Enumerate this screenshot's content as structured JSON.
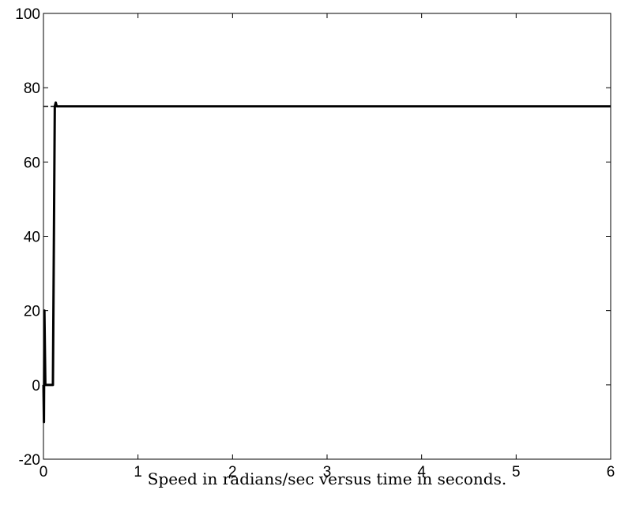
{
  "chart_data": {
    "type": "line",
    "title": "",
    "xlabel": "Speed in radians/sec versus time in seconds.",
    "ylabel": "",
    "xlim": [
      0,
      6
    ],
    "ylim": [
      -20,
      100
    ],
    "xticks": [
      0,
      1,
      2,
      3,
      4,
      5,
      6
    ],
    "yticks": [
      -20,
      0,
      20,
      40,
      60,
      80,
      100
    ],
    "grid": false,
    "line_color": "#000000",
    "series": [
      {
        "x": [
          0,
          0.005,
          0.01,
          0.02,
          0.03,
          0.06,
          0.1,
          0.12,
          0.13,
          0.14,
          3.0,
          3.5,
          6.0
        ],
        "y": [
          0,
          -10,
          20,
          0,
          0,
          0,
          0,
          75,
          76,
          75,
          75,
          75,
          75
        ]
      }
    ],
    "reference": {
      "x": [
        0,
        6
      ],
      "y": [
        75,
        75
      ],
      "style": "dashed"
    }
  }
}
